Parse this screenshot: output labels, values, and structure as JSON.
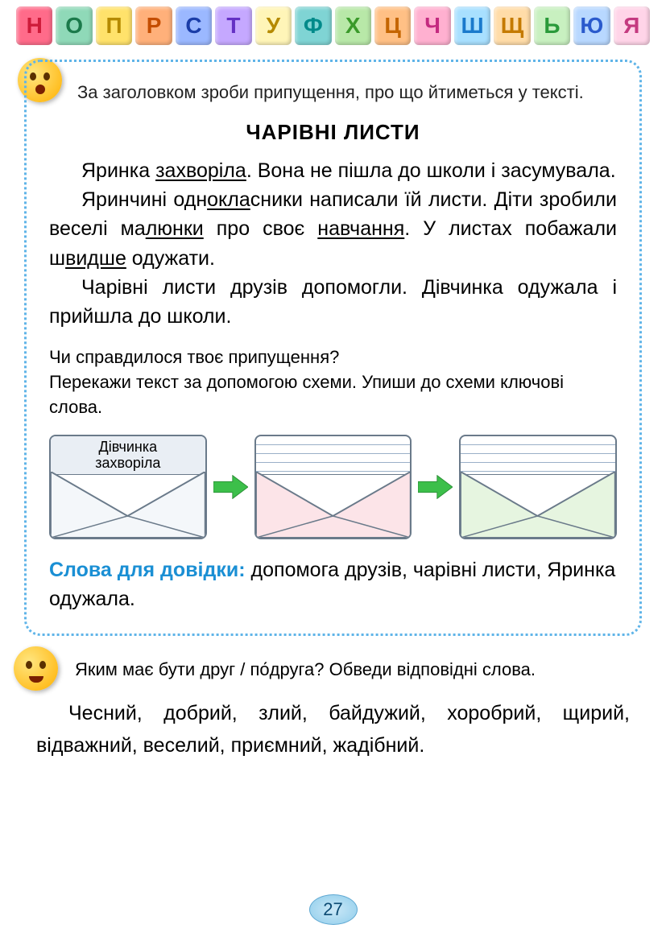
{
  "alphabet": {
    "letters": [
      "Н",
      "О",
      "П",
      "Р",
      "С",
      "Т",
      "У",
      "Ф",
      "Х",
      "Ц",
      "Ч",
      "Ш",
      "Щ",
      "Ь",
      "Ю",
      "Я"
    ],
    "bg_colors": [
      "#ff6b8a",
      "#8fd9b8",
      "#ffe26b",
      "#ffb07a",
      "#9bb8ff",
      "#c5a8ff",
      "#fff5b8",
      "#7fd4d4",
      "#b8e8a8",
      "#ffc085",
      "#ffb0d0",
      "#a8e0ff",
      "#ffdca8",
      "#c8f0c0",
      "#b8d8ff",
      "#ffd4e8"
    ],
    "fg_colors": [
      "#ce1b3a",
      "#1b7a4b",
      "#b58a00",
      "#c44d00",
      "#1a3da8",
      "#6430c4",
      "#b58a00",
      "#008a8a",
      "#3a9a2a",
      "#c46500",
      "#c42a80",
      "#1a7acc",
      "#c47a00",
      "#2a9a3a",
      "#2a5acc",
      "#c43a80"
    ]
  },
  "task1_intro": "За заголовком зроби припущення, про що йтиметься у тексті.",
  "story_title": "ЧАРІВНІ ЛИСТИ",
  "story": {
    "p1_a": "Яринка ",
    "p1_u1": "захворіла",
    "p1_b": ". Вона не пішла до школи і засумувала.",
    "p2_a": "Яринчині одн",
    "p2_u1": "окла",
    "p2_b": "сники написали їй листи. Діти зробили веселі ма",
    "p2_u2": "люнки",
    "p2_c": " про своє ",
    "p2_u3": "навчання",
    "p2_d": ". У листах побажали ш",
    "p2_u4": "видше",
    "p2_e": " одужати.",
    "p3": "Чарівні листи друзів допомогли. Дівчинка одужала і прийшла до школи."
  },
  "followup_q1": "Чи справдилося твоє припущення?",
  "followup_q2": "Перекажи текст за допомогою схеми. Упиши до схеми ключові слова.",
  "envelopes": {
    "first_line1": "Дівчинка",
    "first_line2": "захворіла",
    "colors": {
      "env1_top": "#e9eef4",
      "env1_body": "#f4f7fa",
      "env2_top": "#ffffff",
      "env2_body": "#fce4e8",
      "env3_top": "#ffffff",
      "env3_body": "#e6f5e0",
      "border": "#6a7a8a",
      "arrow_fill": "#3cbf4a",
      "arrow_stroke": "#2a8f35"
    }
  },
  "reference_label": "Слова для довідки:",
  "reference_text": " допомога друзів, чарівні листи, Яринка одужала.",
  "task2_intro": "Яким має бути друг / по́друга? Обведи відповідні слова.",
  "friend_words": "Чесний, добрий, злий, байдужий, хоробрий, щирий, відважний, веселий, приємний, жадібний.",
  "page_number": "27"
}
